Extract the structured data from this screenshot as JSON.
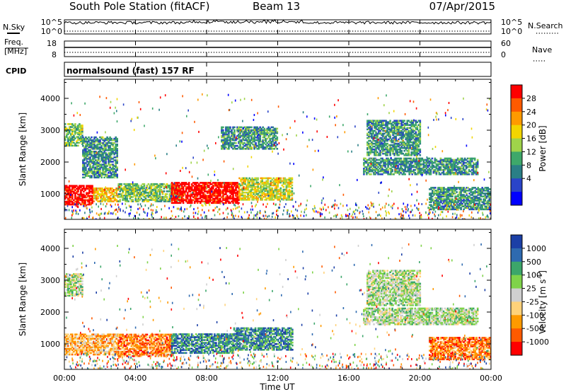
{
  "header": {
    "station": "South Pole Station (fitACF)",
    "beam": "Beam 13",
    "date": "07/Apr/2015"
  },
  "aux_panels": {
    "nsky_label": "N.Sky",
    "nsky_top": "10^5",
    "nsky_bottom": "10^0",
    "nsearch_label": "N.Search",
    "nsearch_top": "10^5",
    "nsearch_bottom": "10^0",
    "freq_label": "Freq.",
    "freq_unit": "[MHz]",
    "freq_top": "18",
    "freq_bottom": "8",
    "nave_label": "Nave",
    "nave_top": "60",
    "nave_bottom": "0",
    "cpid_label": "CPID",
    "cpid_text": "normalsound (fast) 157 RF"
  },
  "chart_data": [
    {
      "type": "heatmap",
      "name": "power",
      "ylabel": "Slant Range [km]",
      "xlabel": "",
      "x_range_hours": [
        0,
        24
      ],
      "ylim": [
        200,
        4600
      ],
      "y_ticks": [
        "1000",
        "2000",
        "3000",
        "4000"
      ],
      "colorbar": {
        "label": "Power [dB]",
        "ticks": [
          "28",
          "24",
          "20",
          "16",
          "12",
          "8",
          "4"
        ],
        "colors": [
          "#ff0000",
          "#ff5a00",
          "#ff9a00",
          "#f2d500",
          "#9fd34a",
          "#3ea86a",
          "#2a7f86",
          "#2a44c8",
          "#0000ff"
        ]
      },
      "features": [
        {
          "t0": 0.0,
          "t1": 1.6,
          "r0": 650,
          "r1": 1250,
          "level": 28
        },
        {
          "t0": 1.6,
          "t1": 3.0,
          "r0": 750,
          "r1": 1200,
          "level": 20
        },
        {
          "t0": 3.0,
          "t1": 6.5,
          "r0": 750,
          "r1": 1300,
          "level": 12
        },
        {
          "t0": 6.0,
          "t1": 9.8,
          "r0": 700,
          "r1": 1350,
          "level": 28
        },
        {
          "t0": 9.8,
          "t1": 12.8,
          "r0": 800,
          "r1": 1500,
          "level": 16
        },
        {
          "t0": 0.0,
          "t1": 1.0,
          "r0": 2500,
          "r1": 3200,
          "level": 12
        },
        {
          "t0": 1.0,
          "t1": 3.0,
          "r0": 1500,
          "r1": 2800,
          "level": 8
        },
        {
          "t0": 8.8,
          "t1": 12.0,
          "r0": 2400,
          "r1": 3100,
          "level": 8
        },
        {
          "t0": 16.8,
          "t1": 23.2,
          "r0": 1600,
          "r1": 2100,
          "level": 8
        },
        {
          "t0": 17.0,
          "t1": 20.0,
          "r0": 2200,
          "r1": 3300,
          "level": 8
        },
        {
          "t0": 20.5,
          "t1": 24.0,
          "r0": 500,
          "r1": 1200,
          "level": 8
        }
      ]
    },
    {
      "type": "heatmap",
      "name": "velocity",
      "ylabel": "Slant Range [km]",
      "xlabel": "Time UT",
      "x_range_hours": [
        0,
        24
      ],
      "x_ticks": [
        "00:00",
        "04:00",
        "08:00",
        "12:00",
        "16:00",
        "20:00",
        "00:00"
      ],
      "ylim": [
        200,
        4600
      ],
      "y_ticks": [
        "1000",
        "2000",
        "3000",
        "4000"
      ],
      "colorbar": {
        "label": "Velocity [m s^-1]",
        "ticks": [
          "1000",
          "500",
          "100",
          "25",
          "-25",
          "-100",
          "-500",
          "-1000"
        ],
        "colors": [
          "#1b3fa6",
          "#2e6ab0",
          "#3ca66a",
          "#7fd34a",
          "#cfcfcf",
          "#ffd27a",
          "#ff9a00",
          "#ff5a00",
          "#ff0000"
        ]
      },
      "features": [
        {
          "t0": 0.0,
          "t1": 3.0,
          "r0": 650,
          "r1": 1300,
          "level": -100
        },
        {
          "t0": 3.0,
          "t1": 6.0,
          "r0": 600,
          "r1": 1300,
          "level": -500
        },
        {
          "t0": 6.0,
          "t1": 9.5,
          "r0": 700,
          "r1": 1300,
          "level": 100
        },
        {
          "t0": 9.5,
          "t1": 12.8,
          "r0": 800,
          "r1": 1500,
          "level": 100
        },
        {
          "t0": 0.0,
          "t1": 1.0,
          "r0": 2500,
          "r1": 3200,
          "level": 0
        },
        {
          "t0": 16.8,
          "t1": 23.2,
          "r0": 1600,
          "r1": 2100,
          "level": 0
        },
        {
          "t0": 17.0,
          "t1": 20.0,
          "r0": 2200,
          "r1": 3300,
          "level": 0
        },
        {
          "t0": 20.5,
          "t1": 24.0,
          "r0": 500,
          "r1": 1200,
          "level": -500
        }
      ]
    }
  ]
}
